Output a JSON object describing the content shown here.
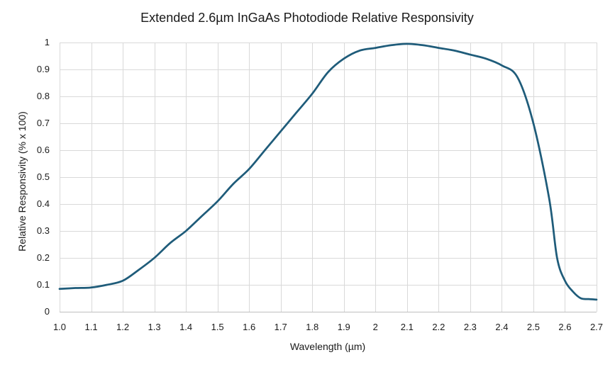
{
  "chart_data": {
    "type": "line",
    "title": "Extended 2.6µm InGaAs Photodiode Relative Responsivity",
    "xlabel": "Wavelength (µm)",
    "ylabel": "Relative Responsivity (% x 100)",
    "xlim": [
      1.0,
      2.7
    ],
    "ylim": [
      0,
      1
    ],
    "grid": true,
    "legend": "none",
    "x_ticks": [
      "1.0",
      "1.1",
      "1.2",
      "1.3",
      "1.4",
      "1.5",
      "1.6",
      "1.7",
      "1.8",
      "1.9",
      "2",
      "2.1",
      "2.2",
      "2.3",
      "2.4",
      "2.5",
      "2.6",
      "2.7"
    ],
    "y_ticks": [
      "0",
      "0.1",
      "0.2",
      "0.3",
      "0.4",
      "0.5",
      "0.6",
      "0.7",
      "0.8",
      "0.9",
      "1"
    ],
    "series": [
      {
        "color": "#1f5c7a",
        "x": [
          1.0,
          1.05,
          1.1,
          1.15,
          1.2,
          1.25,
          1.3,
          1.35,
          1.4,
          1.45,
          1.5,
          1.55,
          1.6,
          1.65,
          1.7,
          1.75,
          1.8,
          1.85,
          1.9,
          1.95,
          2.0,
          2.05,
          2.1,
          2.15,
          2.2,
          2.25,
          2.3,
          2.35,
          2.4,
          2.45,
          2.5,
          2.55,
          2.575,
          2.6,
          2.625,
          2.65,
          2.675,
          2.7
        ],
        "y": [
          0.085,
          0.088,
          0.09,
          0.1,
          0.115,
          0.155,
          0.2,
          0.255,
          0.3,
          0.355,
          0.41,
          0.475,
          0.53,
          0.6,
          0.67,
          0.74,
          0.81,
          0.89,
          0.94,
          0.97,
          0.98,
          0.99,
          0.995,
          0.99,
          0.98,
          0.97,
          0.955,
          0.94,
          0.915,
          0.87,
          0.7,
          0.42,
          0.2,
          0.115,
          0.075,
          0.05,
          0.047,
          0.045
        ]
      }
    ]
  }
}
